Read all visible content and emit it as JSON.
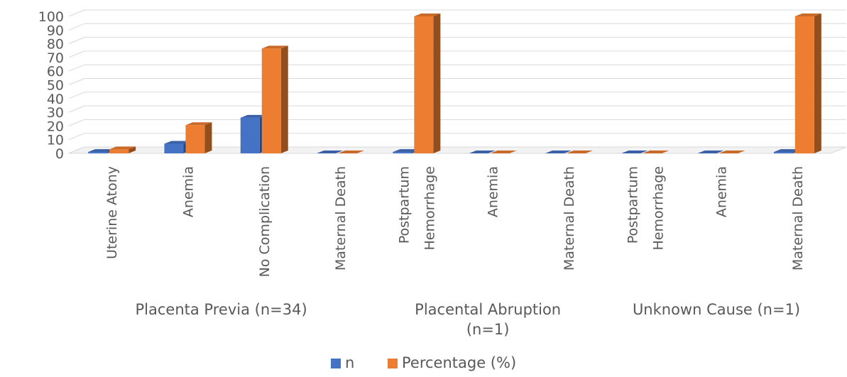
{
  "chart_data": {
    "type": "bar",
    "title": "",
    "xlabel": "",
    "ylabel": "",
    "ylim": [
      0,
      100
    ],
    "yticks": [
      0,
      10,
      20,
      30,
      40,
      50,
      60,
      70,
      80,
      90,
      100
    ],
    "grid": true,
    "legend_position": "bottom",
    "categories": [
      "Uterine Atony",
      "Anemia",
      "No Complication",
      "Maternal Death",
      "Postpartum Hemorrhage",
      "Anemia",
      "Maternal Death",
      "Postpartum Hemorrhage",
      "Anemia",
      "Maternal Death"
    ],
    "category_lines": [
      [
        "Uterine Atony"
      ],
      [
        "Anemia"
      ],
      [
        "No Complication"
      ],
      [
        "Maternal Death"
      ],
      [
        "Postpartum",
        "Hemorrhage"
      ],
      [
        "Anemia"
      ],
      [
        "Maternal Death"
      ],
      [
        "Postpartum",
        "Hemorrhage"
      ],
      [
        "Anemia"
      ],
      [
        "Maternal Death"
      ]
    ],
    "groups": [
      {
        "label_lines": [
          "Placenta Previa (n=34)"
        ],
        "start": 0,
        "end": 3
      },
      {
        "label_lines": [
          "Placental Abruption",
          "(n=1)"
        ],
        "start": 4,
        "end": 6
      },
      {
        "label_lines": [
          "Unknown Cause (n=1)"
        ],
        "start": 7,
        "end": 9
      }
    ],
    "series": [
      {
        "name": "n",
        "color": "#4472C4",
        "values": [
          1,
          7,
          26,
          0,
          1,
          0,
          0,
          0,
          0,
          1
        ]
      },
      {
        "name": "Percentage (%)",
        "color": "#ED7D31",
        "values": [
          2.9,
          20.6,
          76.5,
          0,
          100,
          0,
          0,
          0,
          0,
          100
        ]
      }
    ]
  }
}
